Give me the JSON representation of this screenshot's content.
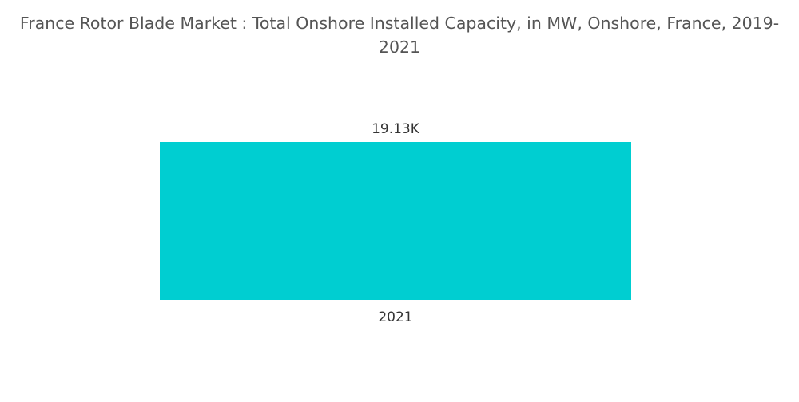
{
  "chart_data": {
    "type": "bar",
    "title": "France Rotor Blade Market : Total Onshore Installed Capacity, in MW, Onshore, France, 2019-2021",
    "categories": [
      "2021"
    ],
    "values": [
      19130
    ],
    "data_labels": [
      "19.13K"
    ],
    "xlabel": "",
    "ylabel": "",
    "ylim": [
      0,
      19130
    ],
    "grid": false,
    "colors": {
      "bar": "#00CED1",
      "title": "#555555",
      "labels": "#333333"
    }
  }
}
